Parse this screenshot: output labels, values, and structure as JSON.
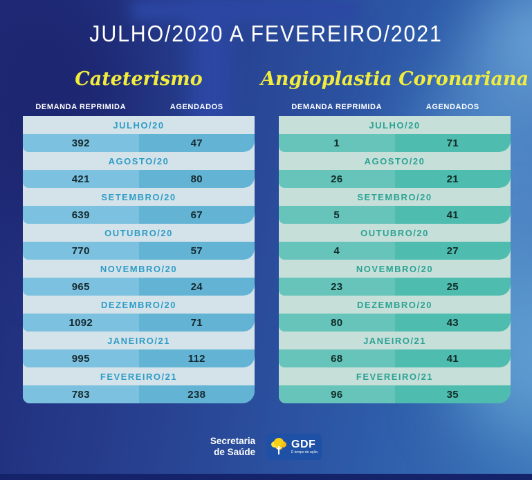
{
  "theme": {
    "accent_yellow": "#f2ed3c",
    "background_blue": "#27408f",
    "footer_strip": "#15236b",
    "logo_box_blue": "#1e50a5",
    "tree_yellow": "#f6cf17"
  },
  "header": {
    "title": "JULHO/2020 A FEVEREIRO/2021"
  },
  "tables": [
    {
      "name": "Cateterismo",
      "col1": "DEMANDA REPRIMIDA",
      "col2": "AGENDADOS",
      "colors": {
        "band_bg": "#d4e3e9",
        "band_text": "#2e9cc7",
        "cell_left": "#7cc1df",
        "cell_right": "#63b3d5",
        "value_text": "#16292e"
      },
      "rows": [
        {
          "month": "JULHO/20",
          "demanda": "392",
          "agendados": "47"
        },
        {
          "month": "AGOSTO/20",
          "demanda": "421",
          "agendados": "80"
        },
        {
          "month": "SETEMBRO/20",
          "demanda": "639",
          "agendados": "67"
        },
        {
          "month": "OUTUBRO/20",
          "demanda": "770",
          "agendados": "57"
        },
        {
          "month": "NOVEMBRO/20",
          "demanda": "965",
          "agendados": "24"
        },
        {
          "month": "DEZEMBRO/20",
          "demanda": "1092",
          "agendados": "71"
        },
        {
          "month": "JANEIRO/21",
          "demanda": "995",
          "agendados": "112"
        },
        {
          "month": "FEVEREIRO/21",
          "demanda": "783",
          "agendados": "238"
        }
      ]
    },
    {
      "name": "Angioplastia Coronariana",
      "col1": "DEMANDA REPRIMIDA",
      "col2": "AGENDADOS",
      "colors": {
        "band_bg": "#c6dfd8",
        "band_text": "#2aa394",
        "cell_left": "#66c4ba",
        "cell_right": "#4ebcae",
        "value_text": "#112b28"
      },
      "rows": [
        {
          "month": "JULHO/20",
          "demanda": "1",
          "agendados": "71"
        },
        {
          "month": "AGOSTO/20",
          "demanda": "26",
          "agendados": "21"
        },
        {
          "month": "SETEMBRO/20",
          "demanda": "5",
          "agendados": "41"
        },
        {
          "month": "OUTUBRO/20",
          "demanda": "4",
          "agendados": "27"
        },
        {
          "month": "NOVEMBRO/20",
          "demanda": "23",
          "agendados": "25"
        },
        {
          "month": "DEZEMBRO/20",
          "demanda": "80",
          "agendados": "43"
        },
        {
          "month": "JANEIRO/21",
          "demanda": "68",
          "agendados": "41"
        },
        {
          "month": "FEVEREIRO/21",
          "demanda": "96",
          "agendados": "35"
        }
      ]
    }
  ],
  "footer": {
    "org_line1": "Secretaria",
    "org_line2": "de Saúde",
    "logo_text": "GDF",
    "logo_tagline": "É tempo de ação."
  },
  "chart_data": [
    {
      "type": "table",
      "title": "Cateterismo",
      "subtitle": "JULHO/2020 A FEVEREIRO/2021",
      "categories": [
        "JULHO/20",
        "AGOSTO/20",
        "SETEMBRO/20",
        "OUTUBRO/20",
        "NOVEMBRO/20",
        "DEZEMBRO/20",
        "JANEIRO/21",
        "FEVEREIRO/21"
      ],
      "series": [
        {
          "name": "DEMANDA REPRIMIDA",
          "values": [
            392,
            421,
            639,
            770,
            965,
            1092,
            995,
            783
          ]
        },
        {
          "name": "AGENDADOS",
          "values": [
            47,
            80,
            67,
            57,
            24,
            71,
            112,
            238
          ]
        }
      ]
    },
    {
      "type": "table",
      "title": "Angioplastia Coronariana",
      "subtitle": "JULHO/2020 A FEVEREIRO/2021",
      "categories": [
        "JULHO/20",
        "AGOSTO/20",
        "SETEMBRO/20",
        "OUTUBRO/20",
        "NOVEMBRO/20",
        "DEZEMBRO/20",
        "JANEIRO/21",
        "FEVEREIRO/21"
      ],
      "series": [
        {
          "name": "DEMANDA REPRIMIDA",
          "values": [
            1,
            26,
            5,
            4,
            23,
            80,
            68,
            96
          ]
        },
        {
          "name": "AGENDADOS",
          "values": [
            71,
            21,
            41,
            27,
            25,
            43,
            41,
            35
          ]
        }
      ]
    }
  ]
}
